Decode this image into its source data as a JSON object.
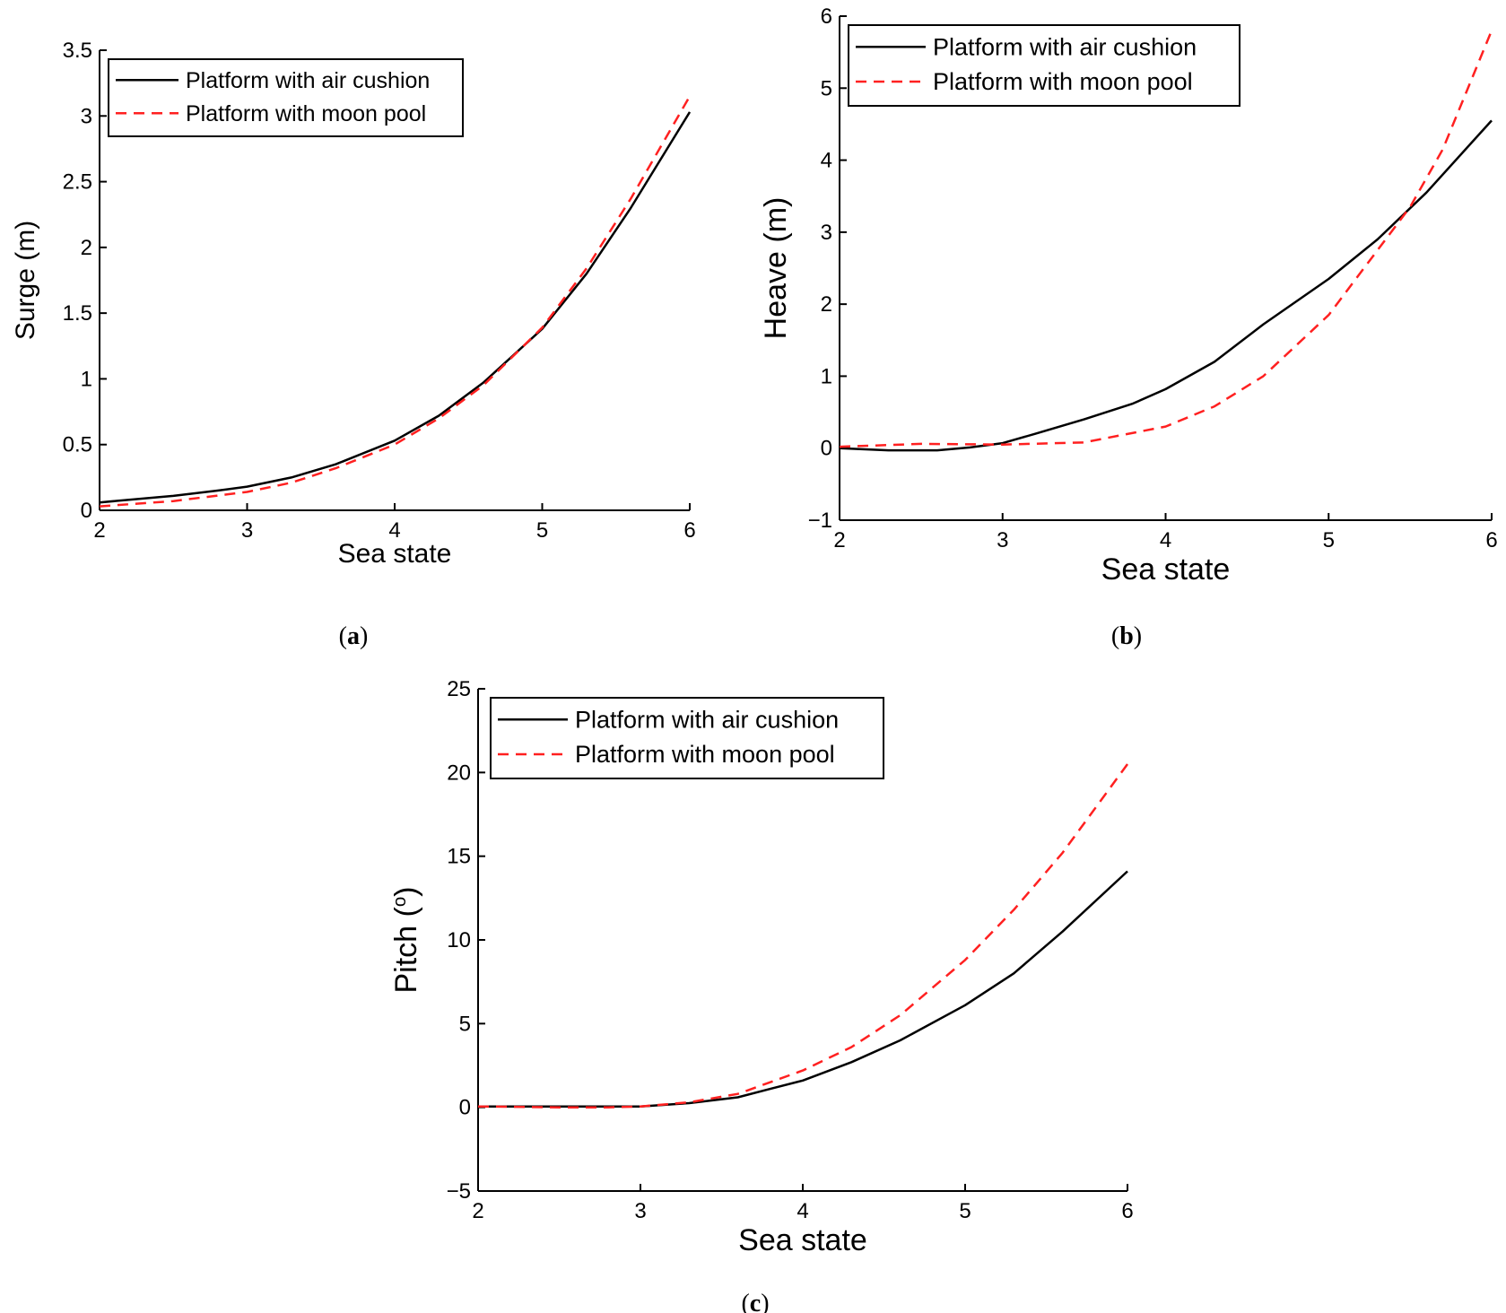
{
  "chart_data": [
    {
      "id": "a",
      "type": "line",
      "caption_letter": "a",
      "xlabel": "Sea state",
      "ylabel": "Surge (m)",
      "xlim": [
        2,
        6
      ],
      "ylim": [
        0,
        3.5
      ],
      "xticks": [
        2,
        3,
        4,
        5,
        6
      ],
      "yticks": [
        0,
        0.5,
        1,
        1.5,
        2,
        2.5,
        3,
        3.5
      ],
      "ytick_labels": [
        "0",
        "0.5",
        "1",
        "1.5",
        "2",
        "2.5",
        "3",
        "3.5"
      ],
      "legend_position": "top-left",
      "series": [
        {
          "name": "Platform with air cushion",
          "color": "#000000",
          "dash": "solid",
          "x": [
            2,
            2.5,
            2.8,
            3,
            3.3,
            3.6,
            4,
            4.3,
            4.6,
            5,
            5.3,
            5.6,
            6
          ],
          "y": [
            0.06,
            0.11,
            0.15,
            0.18,
            0.25,
            0.35,
            0.53,
            0.72,
            0.97,
            1.38,
            1.8,
            2.3,
            3.03
          ]
        },
        {
          "name": "Platform with moon pool",
          "color": "#ff2020",
          "dash": "dashed",
          "x": [
            2,
            2.5,
            3,
            3.3,
            3.6,
            4,
            4.3,
            4.6,
            5,
            5.3,
            5.6,
            6
          ],
          "y": [
            0.03,
            0.07,
            0.14,
            0.21,
            0.32,
            0.5,
            0.7,
            0.95,
            1.39,
            1.84,
            2.37,
            3.15
          ]
        }
      ]
    },
    {
      "id": "b",
      "type": "line",
      "caption_letter": "b",
      "xlabel": "Sea state",
      "ylabel": "Heave (m)",
      "xlim": [
        2,
        6
      ],
      "ylim": [
        -1,
        6
      ],
      "xticks": [
        2,
        3,
        4,
        5,
        6
      ],
      "yticks": [
        -1,
        0,
        1,
        2,
        3,
        4,
        5,
        6
      ],
      "ytick_labels": [
        "−1",
        "0",
        "1",
        "2",
        "3",
        "4",
        "5",
        "6"
      ],
      "legend_position": "top-left",
      "series": [
        {
          "name": "Platform with air cushion",
          "color": "#000000",
          "dash": "solid",
          "x": [
            2,
            2.3,
            2.6,
            2.8,
            3,
            3.2,
            3.5,
            3.8,
            4,
            4.3,
            4.6,
            5,
            5.3,
            5.6,
            6
          ],
          "y": [
            0,
            -0.03,
            -0.03,
            0.01,
            0.07,
            0.2,
            0.4,
            0.62,
            0.82,
            1.2,
            1.72,
            2.35,
            2.9,
            3.55,
            4.55
          ]
        },
        {
          "name": "Platform with moon pool",
          "color": "#ff2020",
          "dash": "dashed",
          "x": [
            2,
            2.5,
            3,
            3.5,
            4,
            4.3,
            4.6,
            5,
            5.3,
            5.5,
            5.7,
            6
          ],
          "y": [
            0.02,
            0.06,
            0.05,
            0.08,
            0.3,
            0.58,
            1.0,
            1.85,
            2.75,
            3.35,
            4.15,
            5.8
          ]
        }
      ]
    },
    {
      "id": "c",
      "type": "line",
      "caption_letter": "c",
      "xlabel": "Sea state",
      "ylabel": "Pitch (",
      "ylabel_sup": "o",
      "ylabel_close": ")",
      "xlim": [
        2,
        6
      ],
      "ylim": [
        -5,
        25
      ],
      "xticks": [
        2,
        3,
        4,
        5,
        6
      ],
      "yticks": [
        -5,
        0,
        5,
        10,
        15,
        20,
        25
      ],
      "ytick_labels": [
        "−5",
        "0",
        "5",
        "10",
        "15",
        "20",
        "25"
      ],
      "legend_position": "top-left",
      "series": [
        {
          "name": "Platform with air cushion",
          "color": "#000000",
          "dash": "solid",
          "x": [
            2,
            2.5,
            3,
            3.3,
            3.6,
            3.8,
            4,
            4.3,
            4.6,
            5,
            5.3,
            5.6,
            6
          ],
          "y": [
            0.05,
            0.05,
            0.05,
            0.25,
            0.6,
            1.1,
            1.6,
            2.7,
            4.0,
            6.1,
            8.0,
            10.5,
            14.1
          ]
        },
        {
          "name": "Platform with moon pool",
          "color": "#ff2020",
          "dash": "dashed",
          "x": [
            2,
            2.5,
            2.8,
            3,
            3.3,
            3.6,
            4,
            4.3,
            4.6,
            5,
            5.3,
            5.6,
            6
          ],
          "y": [
            0.05,
            0,
            0,
            0.05,
            0.3,
            0.8,
            2.2,
            3.6,
            5.5,
            8.8,
            11.8,
            15.2,
            20.5
          ]
        }
      ]
    }
  ]
}
